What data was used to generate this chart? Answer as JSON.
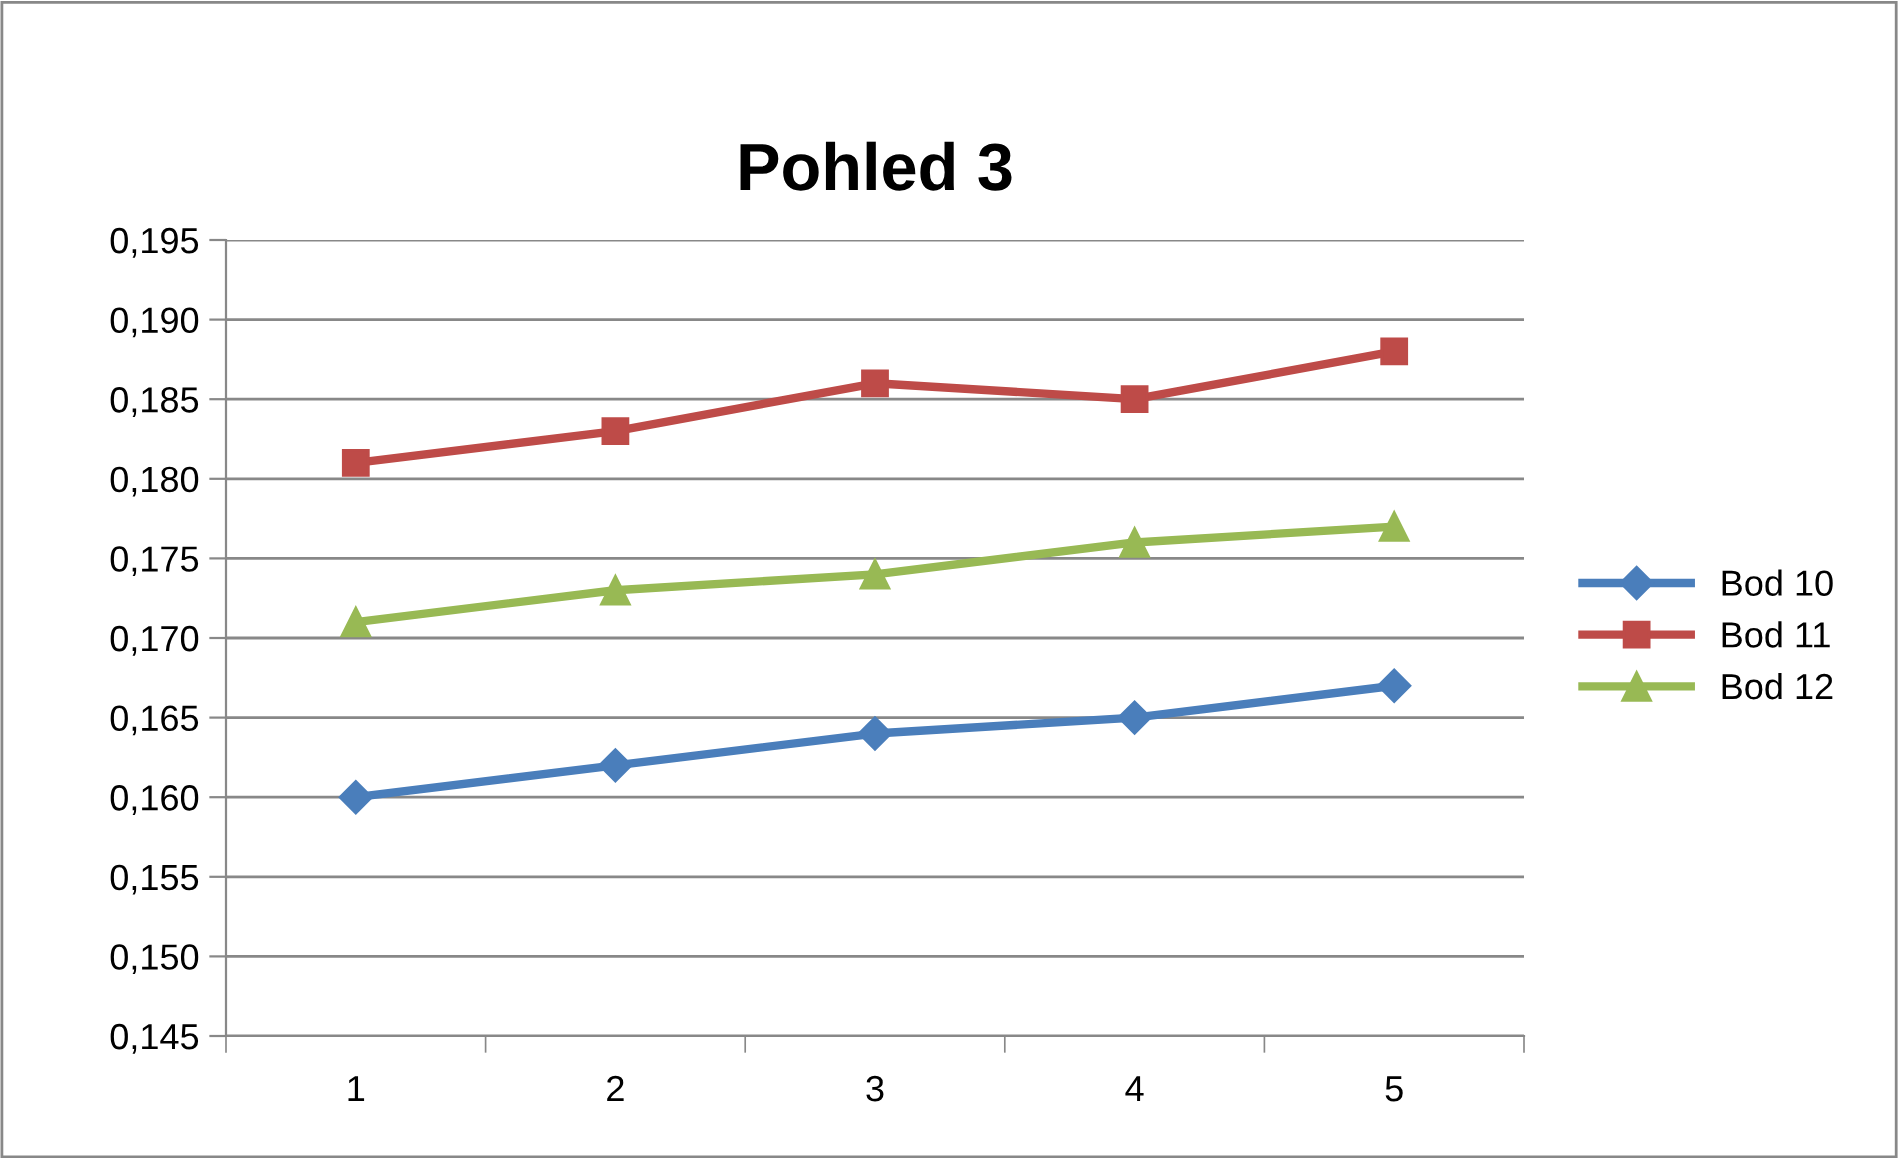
{
  "chart_data": {
    "type": "line",
    "title": "Pohled 3",
    "categories": [
      "1",
      "2",
      "3",
      "4",
      "5"
    ],
    "series": [
      {
        "name": "Bod 10",
        "color": "#4a7ebb",
        "marker": "diamond",
        "values": [
          0.16,
          0.162,
          0.164,
          0.165,
          0.167
        ]
      },
      {
        "name": "Bod 11",
        "color": "#be4b48",
        "marker": "square",
        "values": [
          0.181,
          0.183,
          0.186,
          0.185,
          0.188
        ]
      },
      {
        "name": "Bod 12",
        "color": "#98b954",
        "marker": "triangle",
        "values": [
          0.171,
          0.173,
          0.174,
          0.176,
          0.177
        ]
      }
    ],
    "ylim": [
      0.145,
      0.195
    ],
    "yticks": [
      {
        "value": 0.145,
        "label": "0,145"
      },
      {
        "value": 0.15,
        "label": "0,150"
      },
      {
        "value": 0.155,
        "label": "0,155"
      },
      {
        "value": 0.16,
        "label": "0,160"
      },
      {
        "value": 0.165,
        "label": "0,165"
      },
      {
        "value": 0.17,
        "label": "0,170"
      },
      {
        "value": 0.175,
        "label": "0,175"
      },
      {
        "value": 0.18,
        "label": "0,180"
      },
      {
        "value": 0.185,
        "label": "0,185"
      },
      {
        "value": 0.19,
        "label": "0,190"
      },
      {
        "value": 0.195,
        "label": "0,195"
      }
    ],
    "grid": "y",
    "legend": "right",
    "line_style": "solid"
  }
}
